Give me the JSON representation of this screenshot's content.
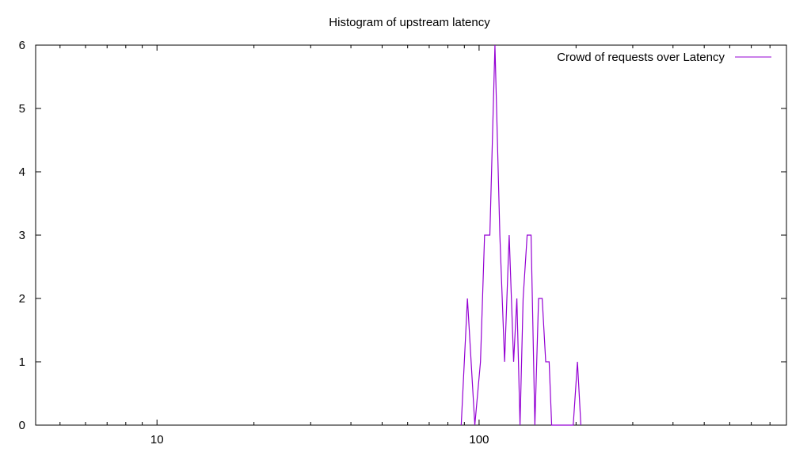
{
  "chart_data": {
    "type": "line",
    "title": "Histogram of upstream latency",
    "xlabel": "",
    "ylabel": "",
    "x_scale": "log",
    "xlim": [
      4.2,
      900
    ],
    "ylim": [
      0,
      6
    ],
    "yticks": [
      0,
      1,
      2,
      3,
      4,
      5,
      6
    ],
    "xticks_labeled": [
      10,
      100
    ],
    "grid": false,
    "legend_position": "top-right",
    "series": [
      {
        "name": "Crowd of requests over Latency",
        "color": "#9400d3",
        "x": [
          88,
          92,
          97,
          101,
          104,
          108,
          112,
          116,
          120,
          124,
          128,
          131,
          134,
          137,
          141,
          145,
          149,
          153,
          157,
          161,
          165,
          168,
          172,
          176,
          196,
          202,
          207
        ],
        "y": [
          0,
          2,
          0,
          1,
          3,
          3,
          6,
          3,
          1,
          3,
          1,
          2,
          0,
          2,
          3,
          3,
          0,
          2,
          2,
          1,
          1,
          0,
          0,
          0,
          0,
          1,
          0
        ]
      }
    ]
  }
}
